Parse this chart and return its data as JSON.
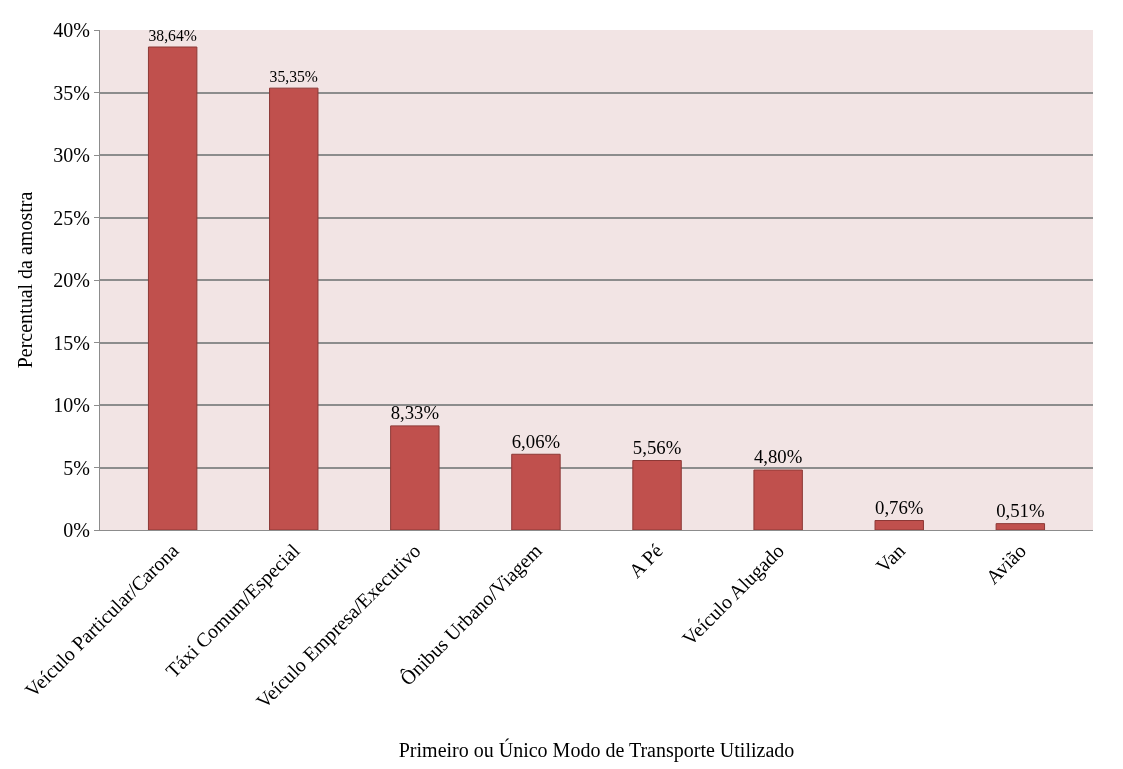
{
  "chart_data": {
    "type": "bar",
    "xlabel": "Primeiro ou Único Modo de Transporte Utilizado",
    "ylabel": "Percentual da amostra",
    "categories": [
      "Veículo Particular/Carona",
      "Táxi Comum/Especial",
      "Veículo Empresa/Executivo",
      "Ônibus Urbano/Viagem",
      "A Pé",
      "Veículo Alugado",
      "Van",
      "Avião"
    ],
    "values": [
      38.64,
      35.35,
      8.33,
      6.06,
      5.56,
      4.8,
      0.76,
      0.51
    ],
    "value_labels": [
      "38,64%",
      "35,35%",
      "8,33%",
      "6,06%",
      "5,56%",
      "4,80%",
      "0,76%",
      "0,51%"
    ],
    "color": "#c0504d",
    "ylim": [
      0,
      40
    ],
    "yticks": [
      {
        "value": 0,
        "label": "0%"
      },
      {
        "value": 5,
        "label": "5%"
      },
      {
        "value": 10,
        "label": "10%"
      },
      {
        "value": 15,
        "label": "15%"
      },
      {
        "value": 20,
        "label": "20%"
      },
      {
        "value": 25,
        "label": "25%"
      },
      {
        "value": 30,
        "label": "30%"
      },
      {
        "value": 35,
        "label": "35%"
      },
      {
        "value": 40,
        "label": "40%"
      }
    ],
    "grid": "y",
    "legend": false
  }
}
